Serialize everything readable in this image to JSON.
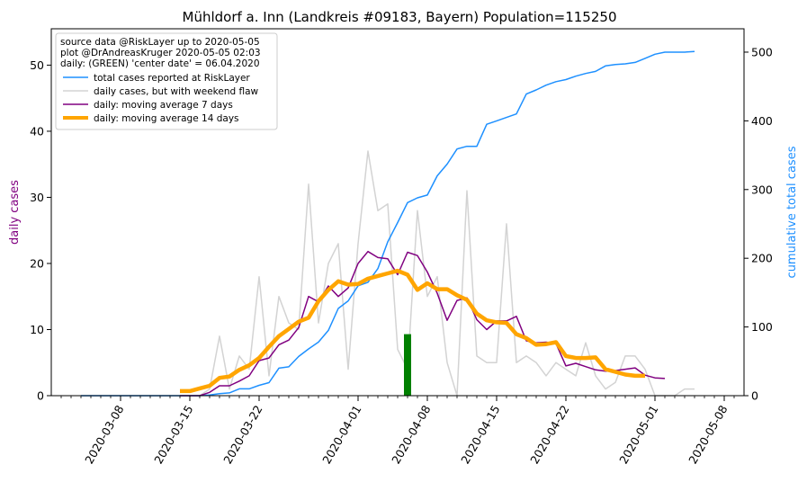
{
  "chart_data": {
    "type": "line",
    "title": "Mühldorf a. Inn (Landkreis #09183, Bayern) Population=115250",
    "ylabel_left": "daily cases",
    "ylabel_right": "cumulative total cases",
    "ylim_left": [
      0,
      55.5
    ],
    "ylim_right": [
      0,
      534
    ],
    "xlim": [
      "2020-03-01",
      "2020-05-10"
    ],
    "x_tick_labels": [
      "2020-03-08",
      "2020-03-15",
      "2020-03-22",
      "2020-04-01",
      "2020-04-08",
      "2020-04-15",
      "2020-04-22",
      "2020-05-01",
      "2020-05-08"
    ],
    "y_left_ticks": [
      0,
      10,
      20,
      30,
      40,
      50
    ],
    "y_right_ticks": [
      0,
      100,
      200,
      300,
      400,
      500
    ],
    "grid": false,
    "legend_position": "top-left",
    "legend_info": [
      "source data @RiskLayer up to 2020-05-05",
      "plot @DrAndreasKruger 2020-05-05 02:03",
      "daily: (GREEN) 'center date' = 06.04.2020"
    ],
    "center_date_marker": {
      "date": "2020-04-06",
      "value": 9.3,
      "color": "#008000"
    },
    "colors": {
      "left_axis_label": "#800080",
      "right_axis_label": "#1e90ff",
      "total": "#1e90ff",
      "raw": "#d3d3d3",
      "ma7": "#800080",
      "ma14": "#ffa500"
    },
    "series": [
      {
        "name": "total cases reported at RiskLayer",
        "axis": "right",
        "x": [
          "2020-03-04",
          "2020-03-05",
          "2020-03-06",
          "2020-03-07",
          "2020-03-08",
          "2020-03-09",
          "2020-03-10",
          "2020-03-11",
          "2020-03-12",
          "2020-03-13",
          "2020-03-14",
          "2020-03-15",
          "2020-03-16",
          "2020-03-17",
          "2020-03-18",
          "2020-03-19",
          "2020-03-20",
          "2020-03-21",
          "2020-03-22",
          "2020-03-23",
          "2020-03-24",
          "2020-03-25",
          "2020-03-26",
          "2020-03-27",
          "2020-03-28",
          "2020-03-29",
          "2020-03-30",
          "2020-03-31",
          "2020-04-01",
          "2020-04-02",
          "2020-04-03",
          "2020-04-04",
          "2020-04-05",
          "2020-04-06",
          "2020-04-07",
          "2020-04-08",
          "2020-04-09",
          "2020-04-10",
          "2020-04-11",
          "2020-04-12",
          "2020-04-13",
          "2020-04-14",
          "2020-04-15",
          "2020-04-16",
          "2020-04-17",
          "2020-04-18",
          "2020-04-19",
          "2020-04-20",
          "2020-04-21",
          "2020-04-22",
          "2020-04-23",
          "2020-04-24",
          "2020-04-25",
          "2020-04-26",
          "2020-04-27",
          "2020-04-28",
          "2020-04-29",
          "2020-04-30",
          "2020-05-01",
          "2020-05-02",
          "2020-05-03",
          "2020-05-04",
          "2020-05-05"
        ],
        "y": [
          0,
          0,
          0,
          0,
          0,
          0,
          0,
          0,
          0,
          0,
          0,
          0,
          0,
          1,
          3,
          4,
          10,
          10,
          15,
          19,
          40,
          42,
          57,
          68,
          78,
          95,
          127,
          138,
          160,
          165,
          185,
          224,
          252,
          281,
          288,
          292,
          320,
          337,
          359,
          363,
          363,
          395,
          400,
          405,
          410,
          439,
          445,
          452,
          457,
          460,
          465,
          469,
          472,
          480,
          482,
          483,
          485,
          491,
          497,
          500,
          500,
          500,
          501
        ]
      },
      {
        "name": "daily cases, but with weekend flaw",
        "axis": "left",
        "x": [
          "2020-03-04",
          "2020-03-05",
          "2020-03-06",
          "2020-03-07",
          "2020-03-08",
          "2020-03-09",
          "2020-03-10",
          "2020-03-11",
          "2020-03-12",
          "2020-03-13",
          "2020-03-14",
          "2020-03-15",
          "2020-03-16",
          "2020-03-17",
          "2020-03-18",
          "2020-03-19",
          "2020-03-20",
          "2020-03-21",
          "2020-03-22",
          "2020-03-23",
          "2020-03-24",
          "2020-03-25",
          "2020-03-26",
          "2020-03-27",
          "2020-03-28",
          "2020-03-29",
          "2020-03-30",
          "2020-03-31",
          "2020-04-01",
          "2020-04-02",
          "2020-04-03",
          "2020-04-04",
          "2020-04-05",
          "2020-04-06",
          "2020-04-07",
          "2020-04-08",
          "2020-04-09",
          "2020-04-10",
          "2020-04-11",
          "2020-04-12",
          "2020-04-13",
          "2020-04-14",
          "2020-04-15",
          "2020-04-16",
          "2020-04-17",
          "2020-04-18",
          "2020-04-19",
          "2020-04-20",
          "2020-04-21",
          "2020-04-22",
          "2020-04-23",
          "2020-04-24",
          "2020-04-25",
          "2020-04-26",
          "2020-04-27",
          "2020-04-28",
          "2020-04-29",
          "2020-04-30",
          "2020-05-01",
          "2020-05-02",
          "2020-05-03",
          "2020-05-04",
          "2020-05-05"
        ],
        "y": [
          0,
          0,
          0,
          0,
          0,
          0,
          0,
          0,
          0,
          0,
          0,
          0,
          0,
          1,
          9,
          1,
          6,
          4,
          18,
          3,
          15,
          11,
          10,
          32,
          11,
          20,
          23,
          4,
          23,
          37,
          28,
          29,
          7,
          4,
          28,
          15,
          18,
          5,
          0,
          31,
          6,
          5,
          5,
          26,
          5,
          6,
          5,
          3,
          5,
          4,
          3,
          8,
          3,
          1,
          2,
          6,
          6,
          4,
          0,
          0,
          0,
          1,
          1
        ]
      },
      {
        "name": "daily: moving average 7 days",
        "axis": "left",
        "x": [
          "2020-03-14",
          "2020-03-15",
          "2020-03-16",
          "2020-03-17",
          "2020-03-18",
          "2020-03-19",
          "2020-03-20",
          "2020-03-21",
          "2020-03-22",
          "2020-03-23",
          "2020-03-24",
          "2020-03-25",
          "2020-03-26",
          "2020-03-27",
          "2020-03-28",
          "2020-03-29",
          "2020-03-30",
          "2020-03-31",
          "2020-04-01",
          "2020-04-02",
          "2020-04-03",
          "2020-04-04",
          "2020-04-05",
          "2020-04-06",
          "2020-04-07",
          "2020-04-08",
          "2020-04-09",
          "2020-04-10",
          "2020-04-11",
          "2020-04-12",
          "2020-04-13",
          "2020-04-14",
          "2020-04-15",
          "2020-04-16",
          "2020-04-17",
          "2020-04-18",
          "2020-04-19",
          "2020-04-20",
          "2020-04-21",
          "2020-04-22",
          "2020-04-23",
          "2020-04-24",
          "2020-04-25",
          "2020-04-26",
          "2020-04-27",
          "2020-04-28",
          "2020-04-29",
          "2020-04-30",
          "2020-05-01",
          "2020-05-02"
        ],
        "y": [
          0,
          0,
          0,
          0.5,
          1.5,
          1.5,
          2.2,
          3,
          5.3,
          5.7,
          7.7,
          8.4,
          10.3,
          15,
          14.2,
          16.6,
          15,
          16.3,
          20,
          21.8,
          20.9,
          20.7,
          18.3,
          21.7,
          21.2,
          18.7,
          15.5,
          11.4,
          14.4,
          14.8,
          11.5,
          10,
          11.3,
          11.3,
          12,
          8.3,
          8,
          8.1,
          7.9,
          4.5,
          4.9,
          4.4,
          3.9,
          3.7,
          3.8,
          4,
          4.2,
          3.1,
          2.7,
          2.6
        ]
      },
      {
        "name": "daily: moving average 14 days",
        "axis": "left",
        "x": [
          "2020-03-14",
          "2020-03-15",
          "2020-03-16",
          "2020-03-17",
          "2020-03-18",
          "2020-03-19",
          "2020-03-20",
          "2020-03-21",
          "2020-03-22",
          "2020-03-23",
          "2020-03-24",
          "2020-03-25",
          "2020-03-26",
          "2020-03-27",
          "2020-03-28",
          "2020-03-29",
          "2020-03-30",
          "2020-03-31",
          "2020-04-01",
          "2020-04-02",
          "2020-04-03",
          "2020-04-04",
          "2020-04-05",
          "2020-04-06",
          "2020-04-07",
          "2020-04-08",
          "2020-04-09",
          "2020-04-10",
          "2020-04-11",
          "2020-04-12",
          "2020-04-13",
          "2020-04-14",
          "2020-04-15",
          "2020-04-16",
          "2020-04-17",
          "2020-04-18",
          "2020-04-19",
          "2020-04-20",
          "2020-04-21",
          "2020-04-22",
          "2020-04-23",
          "2020-04-24",
          "2020-04-25",
          "2020-04-26",
          "2020-04-27",
          "2020-04-28",
          "2020-04-29",
          "2020-04-30"
        ],
        "y": [
          0.7,
          0.7,
          1.1,
          1.5,
          2.7,
          2.9,
          3.9,
          4.6,
          5.7,
          7.4,
          9,
          10.1,
          11.2,
          11.8,
          14.3,
          16,
          17.3,
          16.8,
          16.9,
          17.7,
          18.1,
          18.5,
          18.9,
          18.3,
          16,
          17,
          16.1,
          16.1,
          15.2,
          14.5,
          12.4,
          11.4,
          11.1,
          11,
          9.3,
          8.7,
          7.7,
          7.8,
          8.1,
          6,
          5.7,
          5.7,
          5.8,
          4,
          3.6,
          3.2,
          3,
          3
        ]
      }
    ]
  }
}
